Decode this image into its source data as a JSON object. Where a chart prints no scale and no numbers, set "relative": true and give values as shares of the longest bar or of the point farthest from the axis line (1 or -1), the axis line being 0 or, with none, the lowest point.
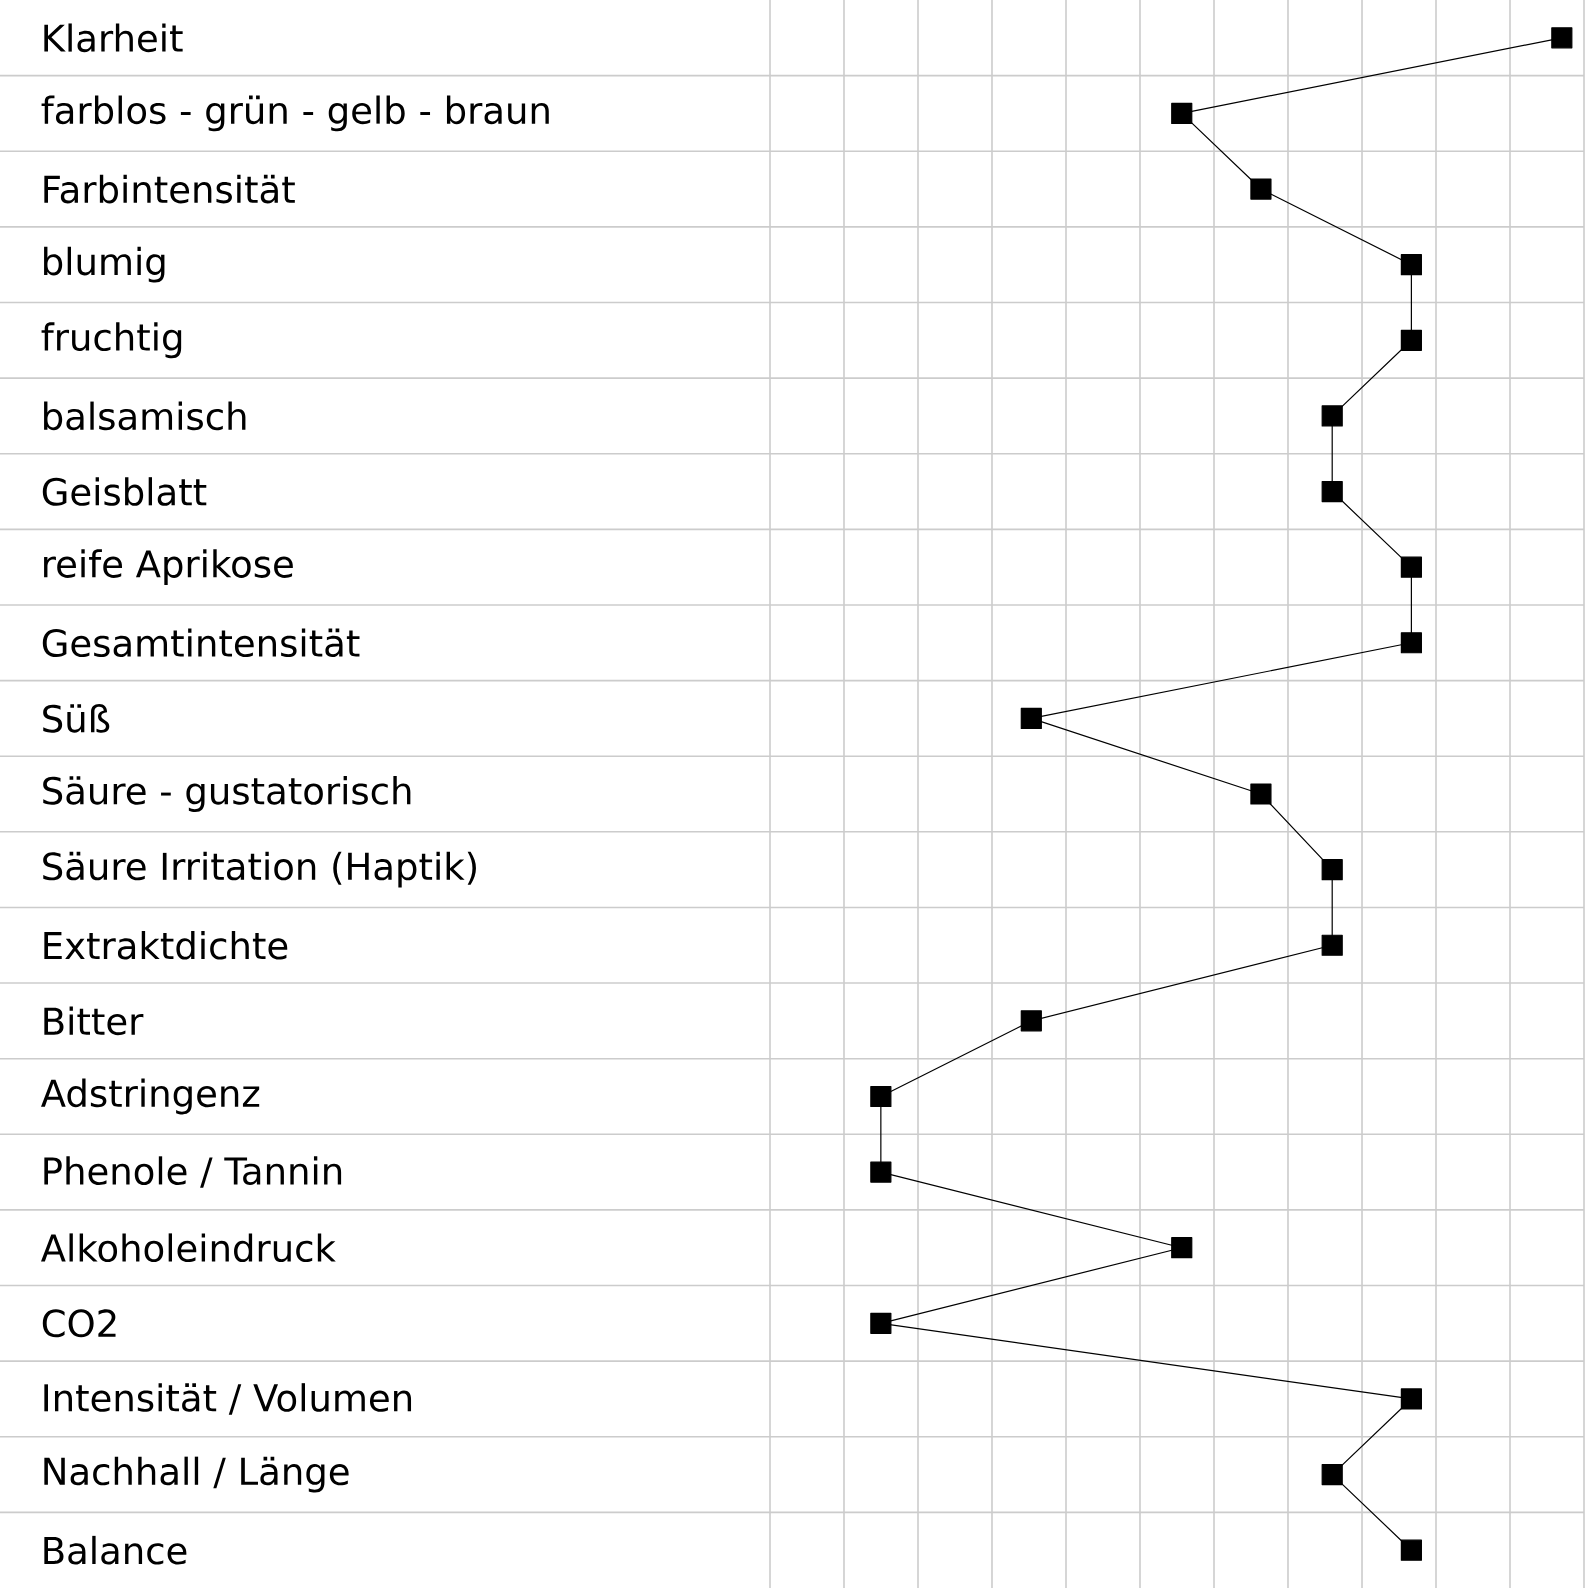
{
  "chart_data": {
    "type": "line",
    "orientation": "horizontal",
    "relative": true,
    "categories": [
      "Klarheit",
      "farblos  - grün - gelb - braun",
      "Farbintensität",
      "blumig",
      "fruchtig",
      "balsamisch",
      "Geisblatt",
      "reife Aprikose",
      "Gesamtintensität",
      "Süß",
      "Säure - gustatorisch",
      "Säure Irritation  (Haptik)",
      "Extraktdichte",
      "Bitter",
      "Adstringenz",
      "Phenole / Tannin",
      "Alkoholeindruck",
      "CO2",
      "Intensität / Volumen",
      "Nachhall / Länge",
      "Balance"
    ],
    "values": [
      1,
      0.52,
      0.62,
      0.81,
      0.81,
      0.71,
      0.71,
      0.81,
      0.81,
      0.33,
      0.62,
      0.71,
      0.71,
      0.33,
      0.14,
      0.14,
      0.52,
      0.14,
      0.81,
      0.71,
      0.81
    ],
    "color": "#000000",
    "marker": "square",
    "line_style": "solid",
    "grid": true,
    "tick_labels": "y"
  }
}
